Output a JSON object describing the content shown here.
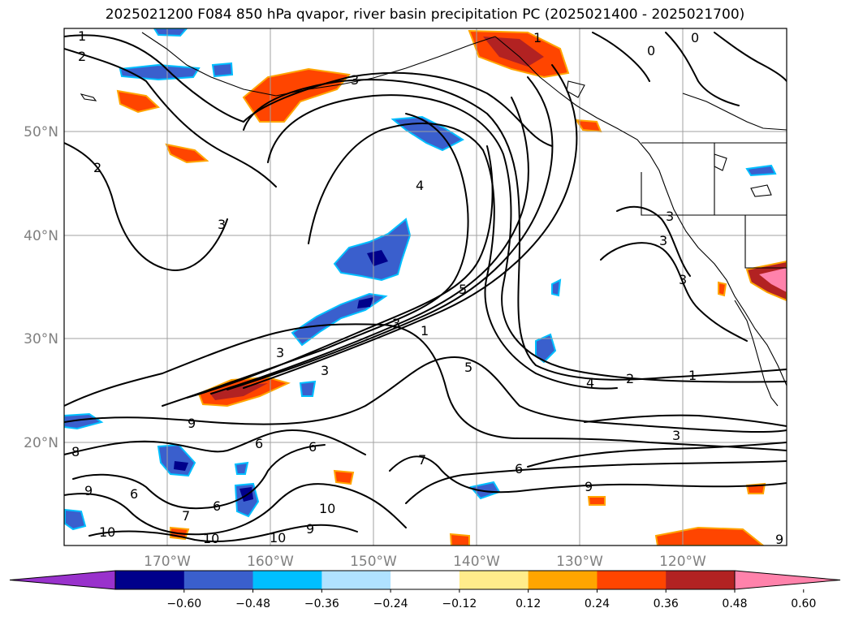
{
  "title": "2025021200 F084 850 hPa qvapor, river basin precipitation PC (2025021400 - 2025021700)",
  "map": {
    "lat_labels": [
      "50°N",
      "40°N",
      "30°N",
      "20°N"
    ],
    "lon_labels": [
      "170°W",
      "160°W",
      "150°W",
      "140°W",
      "130°W",
      "120°W"
    ],
    "contour_labels": [
      "1",
      "2",
      "2",
      "3",
      "4",
      "3",
      "3",
      "5",
      "3",
      "1",
      "3",
      "6",
      "5",
      "4",
      "2",
      "1",
      "9",
      "3",
      "8",
      "6",
      "6",
      "9",
      "6",
      "7",
      "6",
      "10",
      "10",
      "10",
      "10",
      "9",
      "6",
      "9",
      "7",
      "9",
      "3",
      "3",
      "3",
      "0",
      "0",
      "1"
    ]
  },
  "colorbar": {
    "ticks": [
      "−0.60",
      "−0.48",
      "−0.36",
      "−0.24",
      "−0.12",
      "0.12",
      "0.24",
      "0.36",
      "0.48",
      "0.60"
    ],
    "colors": [
      "#9932cc",
      "#00008b",
      "#3a5fcd",
      "#00bfff",
      "#b0e2ff",
      "#ffffff",
      "#ffec8b",
      "#ffa500",
      "#ff4500",
      "#b22222",
      "#ff82ab"
    ],
    "extend": "both"
  }
}
